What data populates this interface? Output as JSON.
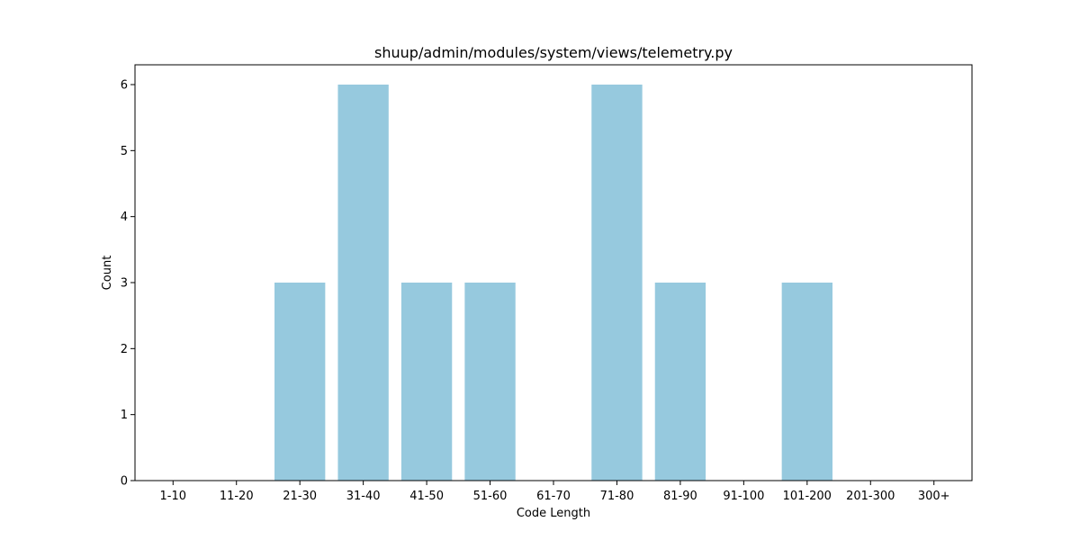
{
  "chart_data": {
    "type": "bar",
    "title": "shuup/admin/modules/system/views/telemetry.py",
    "xlabel": "Code Length",
    "ylabel": "Count",
    "categories": [
      "1-10",
      "11-20",
      "21-30",
      "31-40",
      "41-50",
      "51-60",
      "61-70",
      "71-80",
      "81-90",
      "91-100",
      "101-200",
      "201-300",
      "300+"
    ],
    "values": [
      0,
      0,
      3,
      6,
      3,
      3,
      0,
      6,
      3,
      0,
      3,
      0,
      0
    ],
    "ylim": [
      0,
      6.3
    ],
    "yticks": [
      0,
      1,
      2,
      3,
      4,
      5,
      6
    ],
    "grid": false,
    "bar_color": "#96c9de"
  }
}
